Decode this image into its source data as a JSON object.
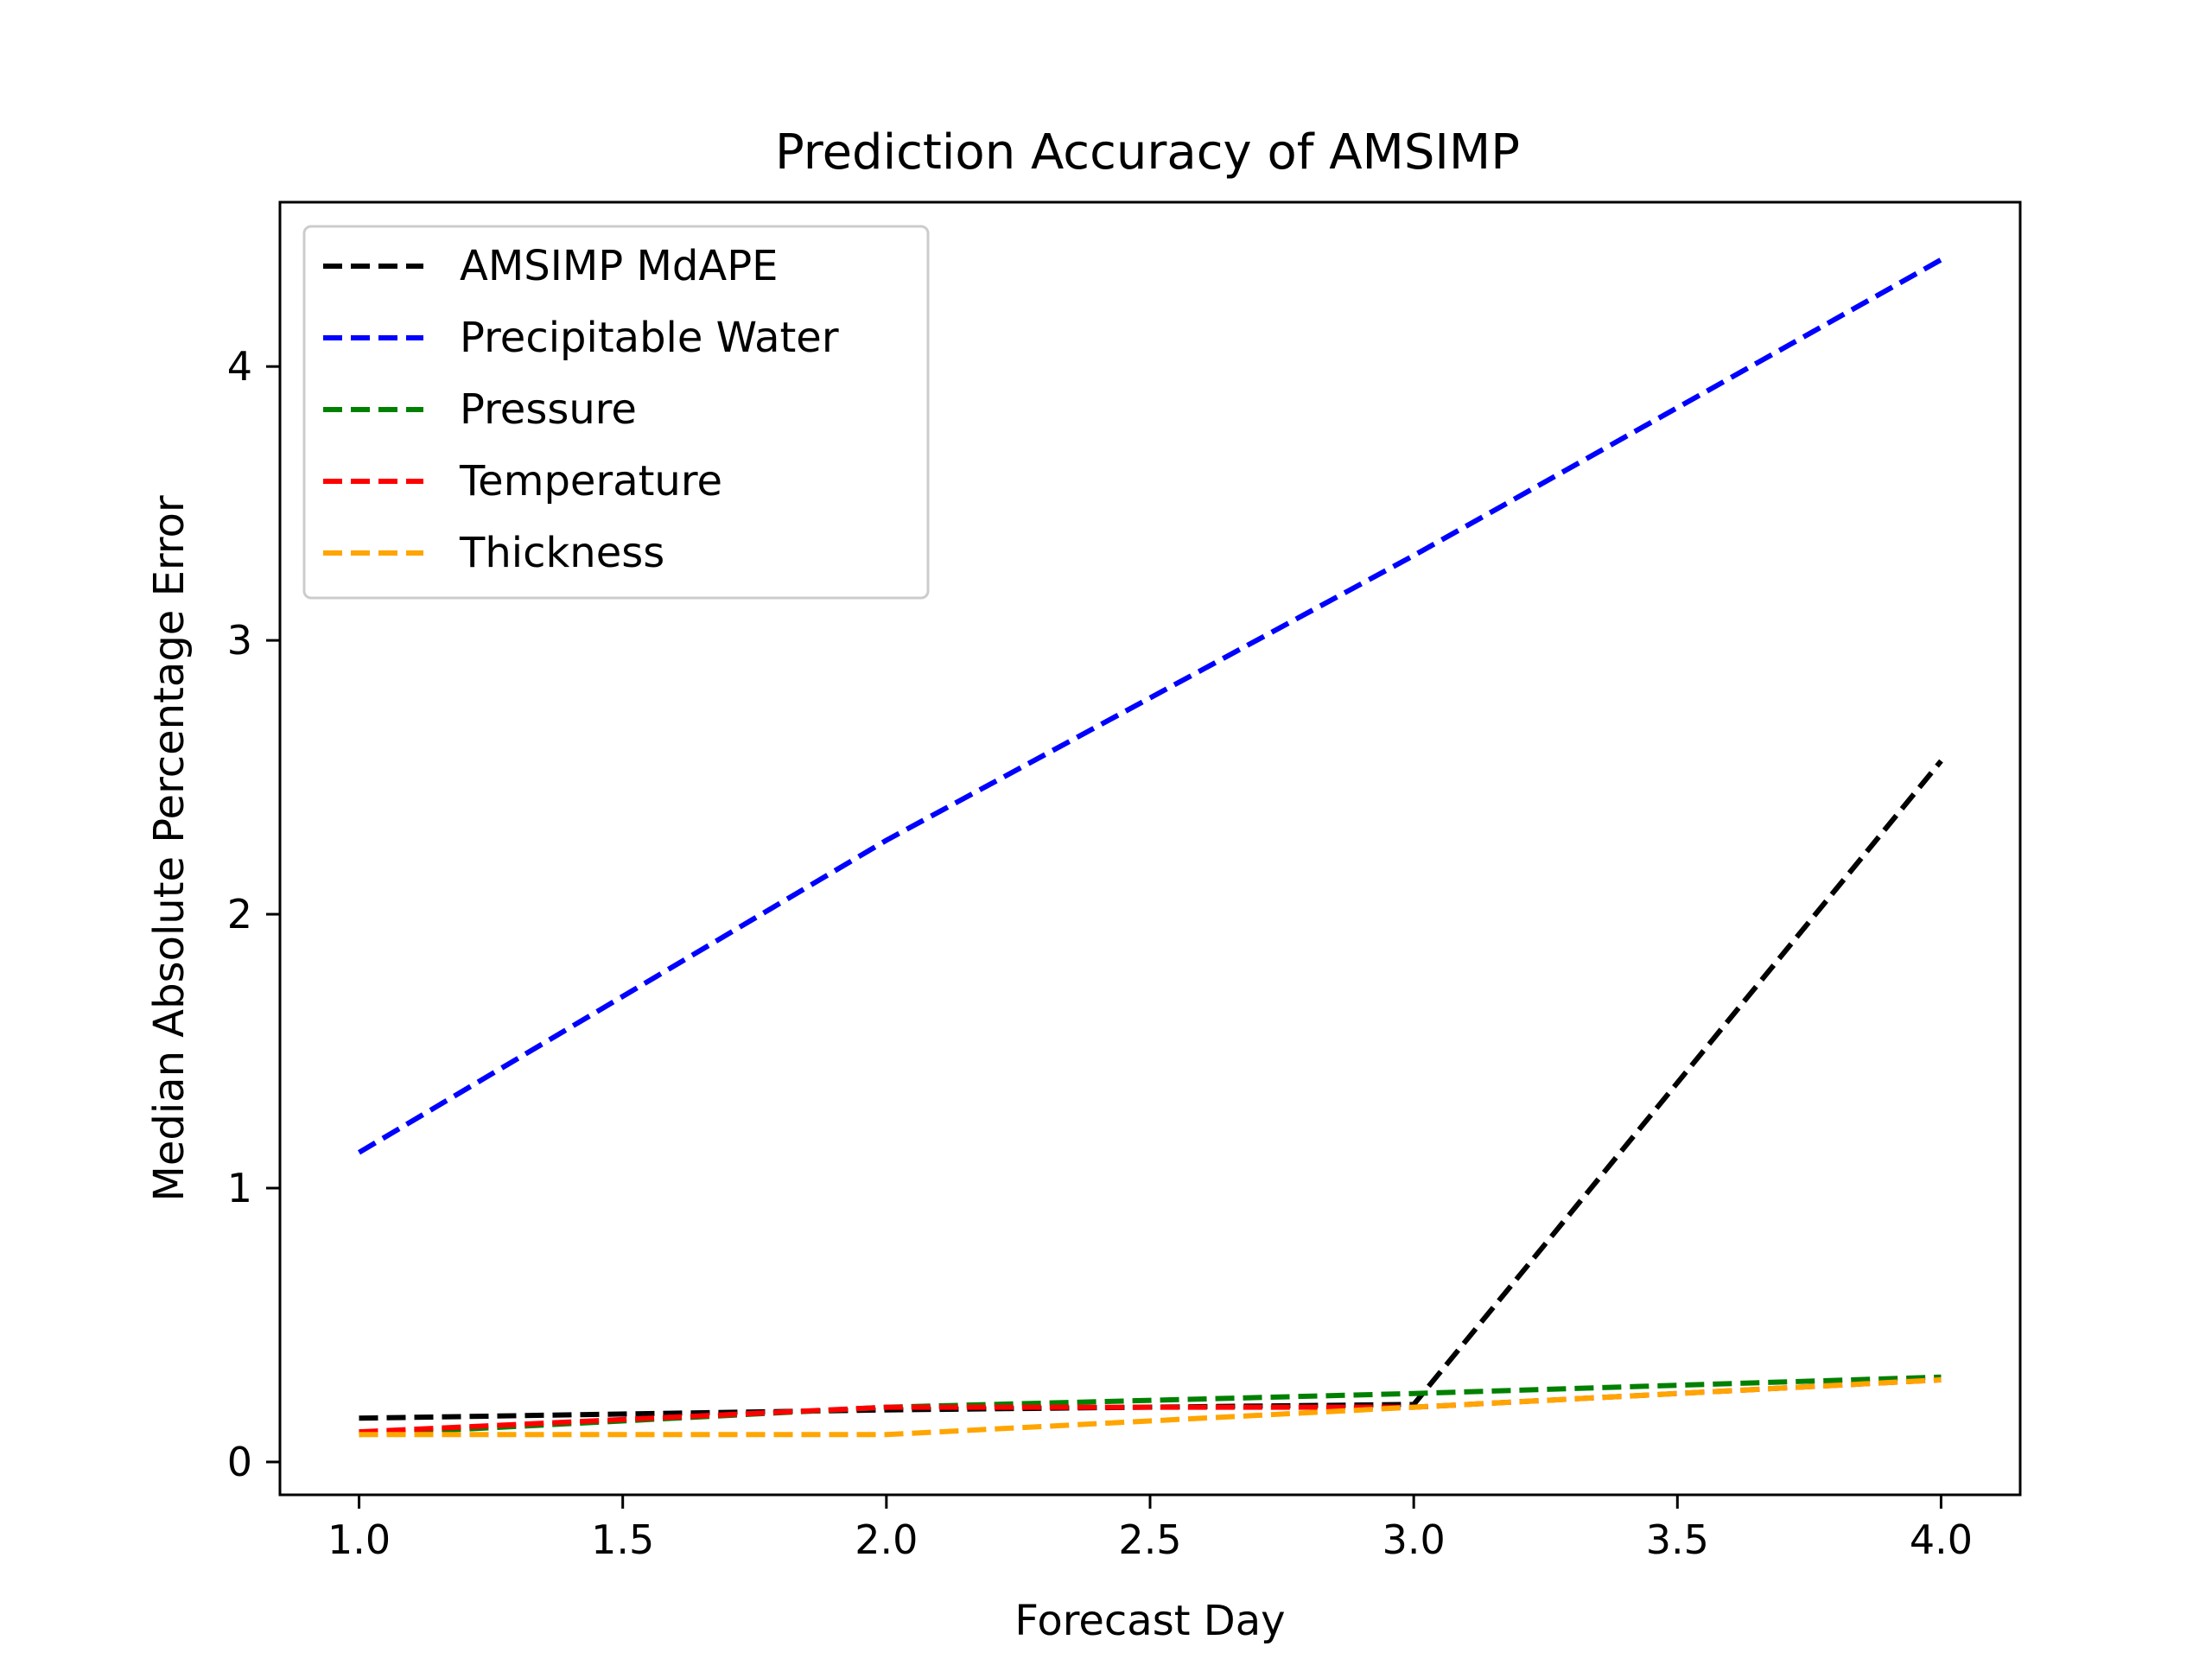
{
  "chart_data": {
    "type": "line",
    "title": "Prediction Accuracy of AMSIMP",
    "xlabel": "Forecast Day",
    "ylabel": "Median Absolute Percentage Error",
    "x": [
      1,
      2,
      3,
      4
    ],
    "xlim": [
      0.85,
      4.15
    ],
    "ylim": [
      -0.12,
      4.6
    ],
    "xticks": [
      1.0,
      1.5,
      2.0,
      2.5,
      3.0,
      3.5,
      4.0
    ],
    "xtick_labels": [
      "1.0",
      "1.5",
      "2.0",
      "2.5",
      "3.0",
      "3.5",
      "4.0"
    ],
    "yticks": [
      0,
      1,
      2,
      3,
      4
    ],
    "ytick_labels": [
      "0",
      "1",
      "2",
      "3",
      "4"
    ],
    "grid": false,
    "legend_position": "top-left",
    "line_style": "dashed",
    "series": [
      {
        "name": "AMSIMP MdAPE",
        "color": "#000000",
        "values": [
          0.16,
          0.19,
          0.21,
          2.56
        ]
      },
      {
        "name": "Precipitable Water",
        "color": "#0000ff",
        "values": [
          1.13,
          2.27,
          3.31,
          4.39
        ]
      },
      {
        "name": "Pressure",
        "color": "#008000",
        "values": [
          0.1,
          0.2,
          0.25,
          0.31
        ]
      },
      {
        "name": "Temperature",
        "color": "#ff0000",
        "values": [
          0.11,
          0.2,
          0.2,
          0.3
        ]
      },
      {
        "name": "Thickness",
        "color": "#ffa500",
        "values": [
          0.1,
          0.1,
          0.2,
          0.3
        ]
      }
    ]
  }
}
